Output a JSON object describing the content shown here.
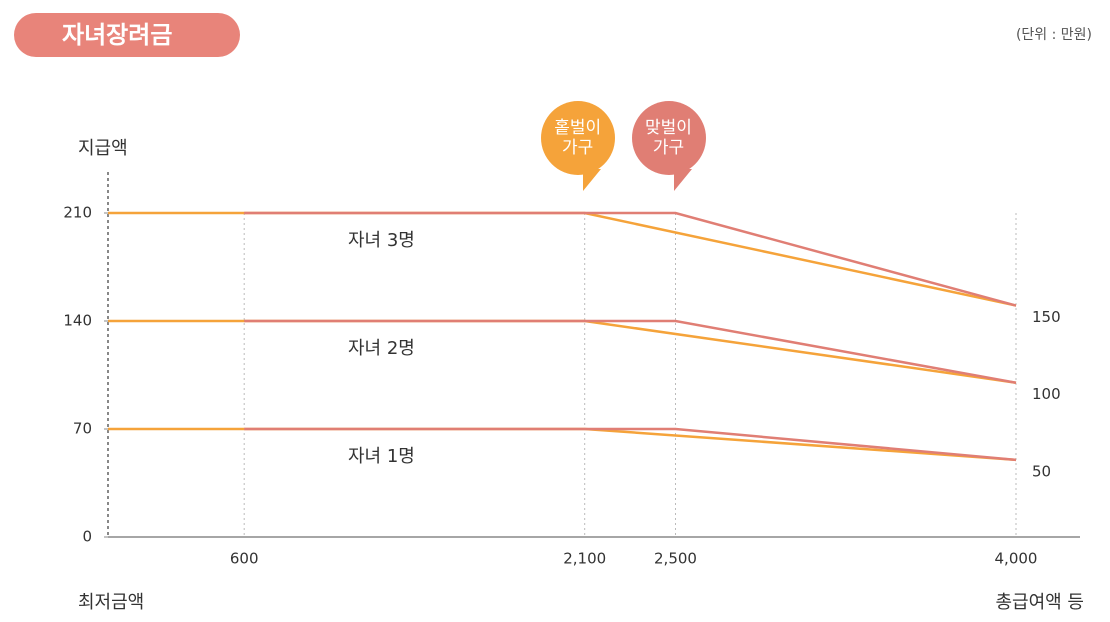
{
  "chart_data": {
    "type": "line",
    "title": "자녀장려금",
    "unit_label": "(단위 : 만원)",
    "ylabel": "지급액",
    "xlabel_left": "최저금액",
    "xlabel_right": "총급여액 등",
    "groups": [
      "자녀 1명",
      "자녀 2명",
      "자녀 3명"
    ],
    "series": [
      {
        "name": "홑벌이 가구",
        "color": "#f5a33a",
        "x": [
          0,
          2100,
          4000
        ],
        "values": [
          [
            70,
            70,
            50
          ],
          [
            140,
            140,
            100
          ],
          [
            210,
            210,
            150
          ]
        ]
      },
      {
        "name": "맞벌이 가구",
        "color": "#e07e74",
        "x": [
          600,
          2500,
          4000
        ],
        "values": [
          [
            70,
            70,
            50
          ],
          [
            140,
            140,
            100
          ],
          [
            210,
            210,
            150
          ]
        ]
      }
    ],
    "xlim": [
      0,
      4000
    ],
    "xticks": [
      600,
      {
        "value": 2100,
        "label": "2,100"
      },
      {
        "value": 2500,
        "label": "2,500"
      },
      {
        "value": 4000,
        "label": "4,000"
      }
    ],
    "ylim": [
      0,
      210
    ],
    "yticks": [
      0,
      70,
      140,
      210
    ]
  }
}
